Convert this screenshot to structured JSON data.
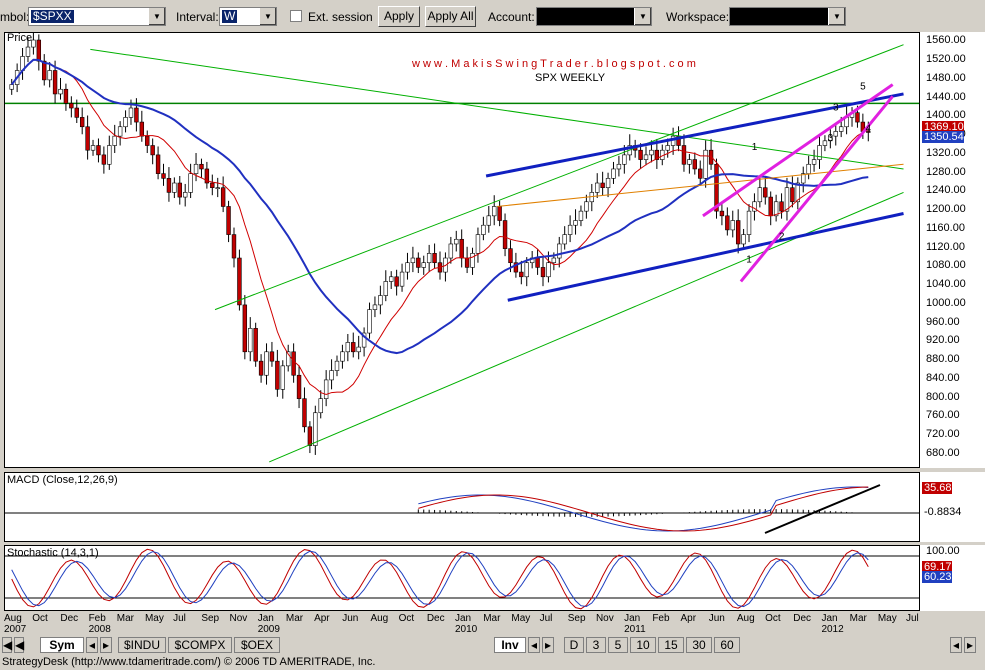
{
  "toolbar": {
    "symbol_label": "mbol:",
    "symbol_value": "$SPXX",
    "interval_label": "Interval:",
    "interval_value": "W",
    "ext_session_label": "Ext. session",
    "apply_label": "Apply",
    "apply_all_label": "Apply All",
    "account_label": "Account:",
    "workspace_label": "Workspace:"
  },
  "price_panel": {
    "title": "Price",
    "watermark": "w w w . M a k i s S w i n g T r a d e r . b l o g s p o t . c o m",
    "subtitle": "SPX WEEKLY",
    "y_ticks": [
      "1560.00",
      "1520.00",
      "1480.00",
      "1440.00",
      "1400.00",
      "1360.00",
      "1320.00",
      "1280.00",
      "1240.00",
      "1200.00",
      "1160.00",
      "1120.00",
      "1080.00",
      "1040.00",
      "1000.00",
      "960.00",
      "920.00",
      "880.00",
      "840.00",
      "800.00",
      "760.00",
      "720.00",
      "680.00"
    ],
    "last_value": "1369.10",
    "ma_value": "1350.54",
    "wave_labels": [
      "1",
      "2",
      "1",
      "3",
      "5",
      "3",
      "4"
    ]
  },
  "macd_panel": {
    "title": "MACD (Close,12,26,9)",
    "value1": "35.68",
    "value2": "-0.8834"
  },
  "stoch_panel": {
    "title": "Stochastic (14,3,1)",
    "top_value": "100.00",
    "value1": "69.17",
    "value2": "60.23"
  },
  "x_labels": [
    {
      "top": "Aug",
      "bottom": "2007"
    },
    {
      "top": "Oct",
      "bottom": ""
    },
    {
      "top": "Dec",
      "bottom": ""
    },
    {
      "top": "Feb",
      "bottom": "2008"
    },
    {
      "top": "Mar",
      "bottom": ""
    },
    {
      "top": "May",
      "bottom": ""
    },
    {
      "top": "Jul",
      "bottom": ""
    },
    {
      "top": "Sep",
      "bottom": ""
    },
    {
      "top": "Nov",
      "bottom": ""
    },
    {
      "top": "Jan",
      "bottom": "2009"
    },
    {
      "top": "Mar",
      "bottom": ""
    },
    {
      "top": "Apr",
      "bottom": ""
    },
    {
      "top": "Jun",
      "bottom": ""
    },
    {
      "top": "Aug",
      "bottom": ""
    },
    {
      "top": "Oct",
      "bottom": ""
    },
    {
      "top": "Dec",
      "bottom": ""
    },
    {
      "top": "Jan",
      "bottom": "2010"
    },
    {
      "top": "Mar",
      "bottom": ""
    },
    {
      "top": "May",
      "bottom": ""
    },
    {
      "top": "Jul",
      "bottom": ""
    },
    {
      "top": "Sep",
      "bottom": ""
    },
    {
      "top": "Nov",
      "bottom": ""
    },
    {
      "top": "Jan",
      "bottom": "2011"
    },
    {
      "top": "Feb",
      "bottom": ""
    },
    {
      "top": "Apr",
      "bottom": ""
    },
    {
      "top": "Jun",
      "bottom": ""
    },
    {
      "top": "Aug",
      "bottom": ""
    },
    {
      "top": "Oct",
      "bottom": ""
    },
    {
      "top": "Dec",
      "bottom": ""
    },
    {
      "top": "Jan",
      "bottom": "2012"
    },
    {
      "top": "Mar",
      "bottom": ""
    },
    {
      "top": "May",
      "bottom": ""
    },
    {
      "top": "Jul",
      "bottom": ""
    }
  ],
  "tabs": [
    "Sym",
    "$INDU",
    "$COMPX",
    "$OEX",
    "Inv",
    "D",
    "3",
    "5",
    "10",
    "15",
    "30",
    "60"
  ],
  "status_text": "StrategyDesk (http://www.tdameritrade.com/) © 2006 TD AMERITRADE, Inc.",
  "colors": {
    "up": "#ffffff",
    "down": "#c00000",
    "trend_blue": "#1020c0",
    "trend_magenta": "#e020e0",
    "trend_green": "#00b000",
    "ma_red": "#d00000",
    "ma_orange": "#e08000"
  },
  "chart_data": {
    "type": "candlestick",
    "title": "SPX WEEKLY",
    "ylim": [
      650,
      1580
    ],
    "x_range": [
      "Aug 2007",
      "Jul 2012"
    ],
    "weekly_close": [
      1470,
      1500,
      1530,
      1550,
      1565,
      1520,
      1480,
      1500,
      1450,
      1460,
      1430,
      1420,
      1400,
      1380,
      1330,
      1340,
      1320,
      1300,
      1340,
      1360,
      1380,
      1400,
      1420,
      1390,
      1360,
      1340,
      1320,
      1280,
      1270,
      1240,
      1260,
      1230,
      1240,
      1280,
      1300,
      1290,
      1260,
      1250,
      1250,
      1210,
      1150,
      1100,
      1000,
      900,
      950,
      880,
      850,
      900,
      880,
      820,
      870,
      900,
      850,
      800,
      740,
      700,
      770,
      800,
      840,
      860,
      880,
      900,
      920,
      900,
      910,
      940,
      990,
      1000,
      1020,
      1050,
      1060,
      1040,
      1070,
      1090,
      1100,
      1080,
      1090,
      1110,
      1090,
      1070,
      1100,
      1130,
      1140,
      1100,
      1080,
      1110,
      1150,
      1170,
      1190,
      1210,
      1180,
      1120,
      1090,
      1070,
      1060,
      1090,
      1100,
      1080,
      1060,
      1090,
      1100,
      1130,
      1150,
      1170,
      1180,
      1200,
      1220,
      1240,
      1260,
      1250,
      1270,
      1290,
      1300,
      1320,
      1340,
      1330,
      1310,
      1320,
      1330,
      1310,
      1330,
      1340,
      1360,
      1340,
      1300,
      1310,
      1290,
      1270,
      1330,
      1300,
      1200,
      1190,
      1160,
      1180,
      1130,
      1150,
      1200,
      1220,
      1250,
      1230,
      1190,
      1220,
      1200,
      1250,
      1220,
      1260,
      1280,
      1300,
      1310,
      1340,
      1350,
      1360,
      1370,
      1380,
      1400,
      1410,
      1390,
      1370,
      1369
    ]
  }
}
